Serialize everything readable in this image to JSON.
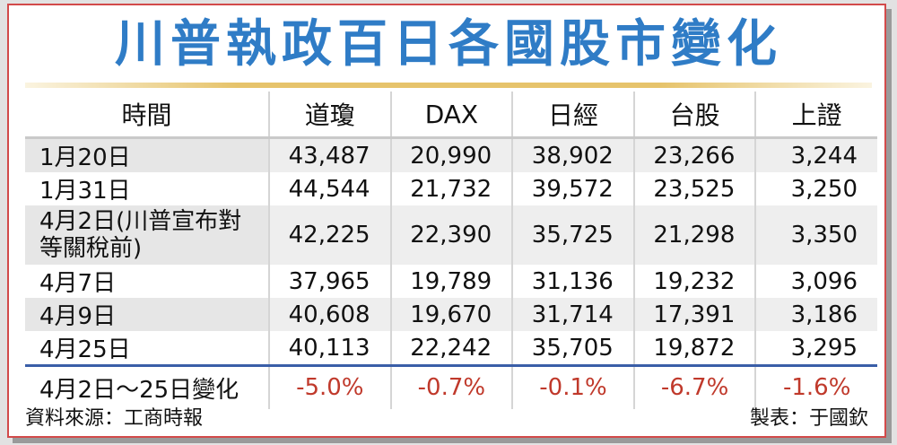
{
  "title": "川普執政百日各國股市變化",
  "headers": [
    "時間",
    "道瓊",
    "DAX",
    "日經",
    "台股",
    "上證"
  ],
  "rows": [
    {
      "date": "1月20日",
      "values": [
        "43,487",
        "20,990",
        "38,902",
        "23,266",
        "3,244"
      ]
    },
    {
      "date": "1月31日",
      "values": [
        "44,544",
        "21,732",
        "39,572",
        "23,525",
        "3,250"
      ]
    },
    {
      "date_line1": "4月2日(川普宣布對",
      "date_line2": "等關稅前)",
      "values": [
        "42,225",
        "22,390",
        "35,725",
        "21,298",
        "3,350"
      ]
    },
    {
      "date": "4月7日",
      "values": [
        "37,965",
        "19,789",
        "31,136",
        "19,232",
        "3,096"
      ]
    },
    {
      "date": "4月9日",
      "values": [
        "40,608",
        "19,670",
        "31,714",
        "17,391",
        "3,186"
      ]
    },
    {
      "date": "4月25日",
      "values": [
        "40,113",
        "22,242",
        "35,705",
        "19,872",
        "3,295"
      ]
    }
  ],
  "change_row": {
    "label": "4月2日～25日變化",
    "values": [
      "-5.0%",
      "-0.7%",
      "-0.1%",
      "-6.7%",
      "-1.6%"
    ]
  },
  "footer": {
    "source": "資料來源：工商時報",
    "credit": "製表：于國欽"
  },
  "colors": {
    "title": "#2f7cc6",
    "border": "#d24a4a",
    "change": "#c0392b",
    "divider": "#3a5ea8"
  }
}
